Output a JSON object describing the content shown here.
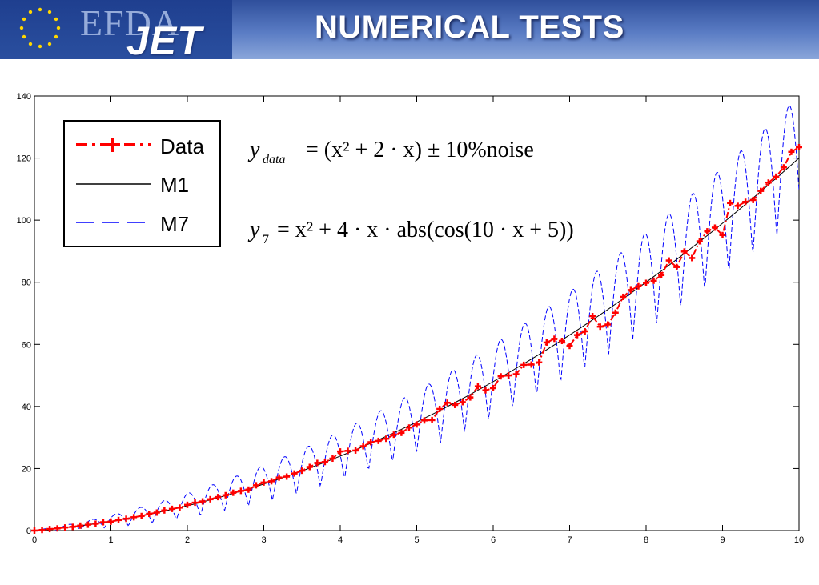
{
  "header": {
    "logo_efda": "EFDA",
    "logo_jet": "JET",
    "title": "NUMERICAL TESTS"
  },
  "colors": {
    "data": "#ff0000",
    "m1": "#000000",
    "m7": "#0000ff",
    "header_top": "#2f4f9b",
    "header_bottom": "#8aa6da"
  },
  "equations": {
    "eq1": {
      "lhs": "y",
      "lhs_sub": "data",
      "rhs": "= (x² + 2 · x) ± 10%noise"
    },
    "eq2": {
      "lhs": "y",
      "lhs_sub": "7",
      "rhs": "= x² + 4 · x · abs(cos(10 · x + 5))"
    }
  },
  "chart_data": {
    "type": "line",
    "xlim": [
      0,
      10
    ],
    "ylim": [
      0,
      140
    ],
    "xticks": [
      "0",
      "1",
      "2",
      "3",
      "4",
      "5",
      "6",
      "7",
      "8",
      "9",
      "10"
    ],
    "yticks": [
      "0",
      "20",
      "40",
      "60",
      "80",
      "100",
      "120",
      "140"
    ],
    "grid": false,
    "legend_position": "top-left",
    "series": [
      {
        "name": "Data",
        "style": "dash-dot with plus markers",
        "color": "#ff0000",
        "x": [
          0,
          0.1,
          0.2,
          0.3,
          0.4,
          0.5,
          0.6,
          0.7,
          0.8,
          0.9,
          1.0,
          1.1,
          1.2,
          1.3,
          1.4,
          1.5,
          1.6,
          1.7,
          1.8,
          1.9,
          2.0,
          2.1,
          2.2,
          2.3,
          2.4,
          2.5,
          2.6,
          2.7,
          2.8,
          2.9,
          3.0,
          3.1,
          3.2,
          3.3,
          3.4,
          3.5,
          3.6,
          3.7,
          3.8,
          3.9,
          4.0,
          4.1,
          4.2,
          4.3,
          4.4,
          4.5,
          4.6,
          4.7,
          4.8,
          4.9,
          5.0,
          5.1,
          5.2,
          5.3,
          5.4,
          5.5,
          5.6,
          5.7,
          5.8,
          5.9,
          6.0,
          6.1,
          6.2,
          6.3,
          6.4,
          6.5,
          6.6,
          6.7,
          6.8,
          6.9,
          7.0,
          7.1,
          7.2,
          7.3,
          7.4,
          7.5,
          7.6,
          7.7,
          7.8,
          7.9,
          8.0,
          8.1,
          8.2,
          8.3,
          8.4,
          8.5,
          8.6,
          8.7,
          8.8,
          8.9,
          9.0,
          9.1,
          9.2,
          9.3,
          9.4,
          9.5,
          9.6,
          9.7,
          9.8,
          9.9,
          10.0
        ],
        "y": [
          0,
          0.2,
          0.5,
          0.7,
          1.0,
          1.2,
          1.6,
          1.9,
          2.2,
          2.7,
          2.9,
          3.4,
          3.8,
          4.3,
          4.7,
          5.4,
          5.8,
          6.5,
          7.0,
          7.4,
          8.3,
          9.0,
          9.4,
          10.1,
          10.8,
          11.4,
          12.2,
          12.8,
          13.2,
          14.6,
          15.5,
          15.9,
          17.1,
          17.4,
          18.4,
          19.3,
          20.5,
          21.8,
          22.1,
          23.2,
          25.5,
          25.7,
          25.8,
          27.2,
          28.5,
          28.9,
          29.6,
          30.9,
          31.5,
          33.2,
          34.2,
          35.5,
          35.6,
          39.2,
          41.2,
          40.5,
          41.4,
          42.9,
          46.5,
          45.2,
          45.9,
          49.7,
          50.0,
          50.4,
          53.4,
          53.5,
          54.2,
          60.6,
          61.8,
          61.1,
          59.5,
          63.0,
          64.2,
          69.1,
          65.7,
          66.4,
          70.2,
          75.3,
          77.5,
          78.7,
          79.8,
          80.5,
          82.3,
          87.0,
          84.9,
          89.9,
          87.8,
          93.2,
          96.4,
          97.6,
          95.2,
          105.5,
          104.6,
          105.9,
          106.5,
          109.4,
          112.1,
          114.0,
          117.0,
          122.0,
          123.5
        ]
      },
      {
        "name": "M1",
        "style": "solid",
        "color": "#000000",
        "formula": "x^2 + 2x"
      },
      {
        "name": "M7",
        "style": "dashed",
        "color": "#0000ff",
        "formula": "x^2 + 4x·|cos(10x+5)|"
      }
    ]
  }
}
